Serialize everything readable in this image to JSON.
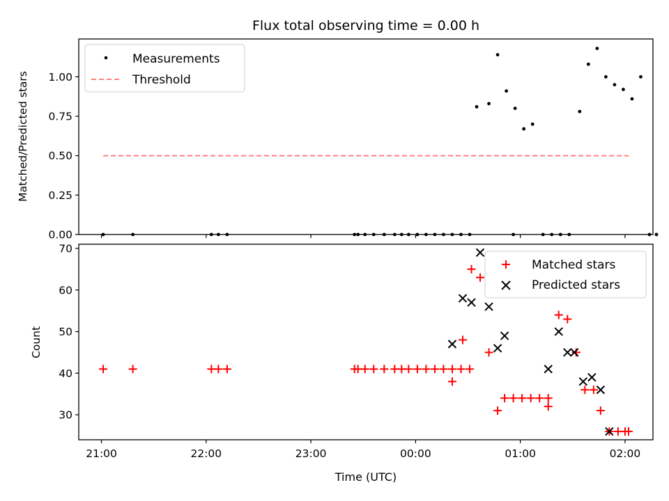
{
  "chart_data": [
    {
      "type": "scatter",
      "title": "Flux total observing time = 0.00 h",
      "xlabel": "",
      "ylabel": "Matched/Predicted stars",
      "ylim": [
        0,
        1.24
      ],
      "xlim": [
        "20:47",
        "02:16"
      ],
      "y_ticks": [
        0.0,
        0.25,
        0.5,
        0.75,
        1.0
      ],
      "y_tick_labels": [
        "0.00",
        "0.25",
        "0.50",
        "0.75",
        "1.00"
      ],
      "grid": false,
      "legend": {
        "position": "top-left"
      },
      "series": [
        {
          "name": "Measurements",
          "style": "dot",
          "color": "#000000",
          "points": [
            [
              "21:01",
              0
            ],
            [
              "21:18",
              0
            ],
            [
              "22:03",
              0
            ],
            [
              "22:07",
              0
            ],
            [
              "22:12",
              0
            ],
            [
              "23:25",
              0
            ],
            [
              "23:27",
              0
            ],
            [
              "23:31",
              0
            ],
            [
              "23:36",
              0
            ],
            [
              "23:42",
              0
            ],
            [
              "23:48",
              0
            ],
            [
              "23:52",
              0
            ],
            [
              "23:56",
              0
            ],
            [
              "00:01",
              0
            ],
            [
              "00:06",
              0
            ],
            [
              "00:11",
              0
            ],
            [
              "00:16",
              0
            ],
            [
              "00:21",
              0
            ],
            [
              "00:26",
              0
            ],
            [
              "00:31",
              0
            ],
            [
              "00:35",
              0.81
            ],
            [
              "00:42",
              0.83
            ],
            [
              "00:47",
              1.14
            ],
            [
              "00:52",
              0.91
            ],
            [
              "00:57",
              0.8
            ],
            [
              "01:02",
              0.67
            ],
            [
              "01:07",
              0.7
            ],
            [
              "00:56",
              0
            ],
            [
              "01:13",
              0
            ],
            [
              "01:18",
              0
            ],
            [
              "01:23",
              0
            ],
            [
              "01:28",
              0
            ],
            [
              "01:34",
              0.78
            ],
            [
              "01:39",
              1.08
            ],
            [
              "01:44",
              1.18
            ],
            [
              "01:49",
              1.0
            ],
            [
              "01:54",
              0.95
            ],
            [
              "01:59",
              0.92
            ],
            [
              "02:04",
              0.86
            ],
            [
              "02:09",
              1.0
            ],
            [
              "02:14",
              0
            ],
            [
              "02:18",
              0
            ]
          ]
        },
        {
          "name": "Threshold",
          "style": "dashed-line",
          "color": "#ff7f7f",
          "x": [
            "21:01",
            "02:02"
          ],
          "y": [
            0.5,
            0.5
          ]
        }
      ]
    },
    {
      "type": "scatter",
      "title": "",
      "xlabel": "Time (UTC)",
      "ylabel": "Count",
      "ylim": [
        24,
        71
      ],
      "xlim": [
        "20:47",
        "02:16"
      ],
      "y_ticks": [
        30,
        40,
        50,
        60,
        70
      ],
      "y_tick_labels": [
        "30",
        "40",
        "50",
        "60",
        "70"
      ],
      "x_ticks": [
        "21:00",
        "22:00",
        "23:00",
        "00:00",
        "01:00",
        "02:00"
      ],
      "x_tick_labels": [
        "21:00",
        "22:00",
        "23:00",
        "00:00",
        "01:00",
        "02:00"
      ],
      "grid": false,
      "legend": {
        "position": "top-right"
      },
      "series": [
        {
          "name": "Matched stars",
          "style": "plus",
          "color": "#ff0000",
          "points": [
            [
              "21:01",
              41
            ],
            [
              "21:18",
              41
            ],
            [
              "22:03",
              41
            ],
            [
              "22:07",
              41
            ],
            [
              "22:12",
              41
            ],
            [
              "23:25",
              41
            ],
            [
              "23:27",
              41
            ],
            [
              "23:31",
              41
            ],
            [
              "23:36",
              41
            ],
            [
              "23:42",
              41
            ],
            [
              "23:48",
              41
            ],
            [
              "23:52",
              41
            ],
            [
              "23:56",
              41
            ],
            [
              "00:01",
              41
            ],
            [
              "00:06",
              41
            ],
            [
              "00:11",
              41
            ],
            [
              "00:16",
              41
            ],
            [
              "00:21",
              41
            ],
            [
              "00:26",
              41
            ],
            [
              "00:31",
              41
            ],
            [
              "00:21",
              38
            ],
            [
              "00:27",
              48
            ],
            [
              "00:32",
              65
            ],
            [
              "00:37",
              63
            ],
            [
              "00:42",
              45
            ],
            [
              "00:47",
              31
            ],
            [
              "00:51",
              34
            ],
            [
              "00:56",
              34
            ],
            [
              "01:01",
              34
            ],
            [
              "01:06",
              34
            ],
            [
              "01:11",
              34
            ],
            [
              "01:16",
              34
            ],
            [
              "01:16",
              32
            ],
            [
              "01:22",
              54
            ],
            [
              "01:27",
              53
            ],
            [
              "01:32",
              45
            ],
            [
              "01:37",
              36
            ],
            [
              "01:42",
              36
            ],
            [
              "01:46",
              31
            ],
            [
              "01:51",
              26
            ],
            [
              "01:56",
              26
            ],
            [
              "02:00",
              26
            ],
            [
              "02:02",
              26
            ]
          ]
        },
        {
          "name": "Predicted stars",
          "style": "cross",
          "color": "#000000",
          "points": [
            [
              "00:21",
              47
            ],
            [
              "00:27",
              58
            ],
            [
              "00:32",
              57
            ],
            [
              "00:37",
              69
            ],
            [
              "00:42",
              56
            ],
            [
              "00:47",
              46
            ],
            [
              "00:51",
              49
            ],
            [
              "01:16",
              41
            ],
            [
              "01:22",
              50
            ],
            [
              "01:27",
              45
            ],
            [
              "01:31",
              45
            ],
            [
              "01:36",
              38
            ],
            [
              "01:41",
              39
            ],
            [
              "01:46",
              36
            ],
            [
              "01:51",
              26
            ]
          ]
        }
      ]
    }
  ]
}
